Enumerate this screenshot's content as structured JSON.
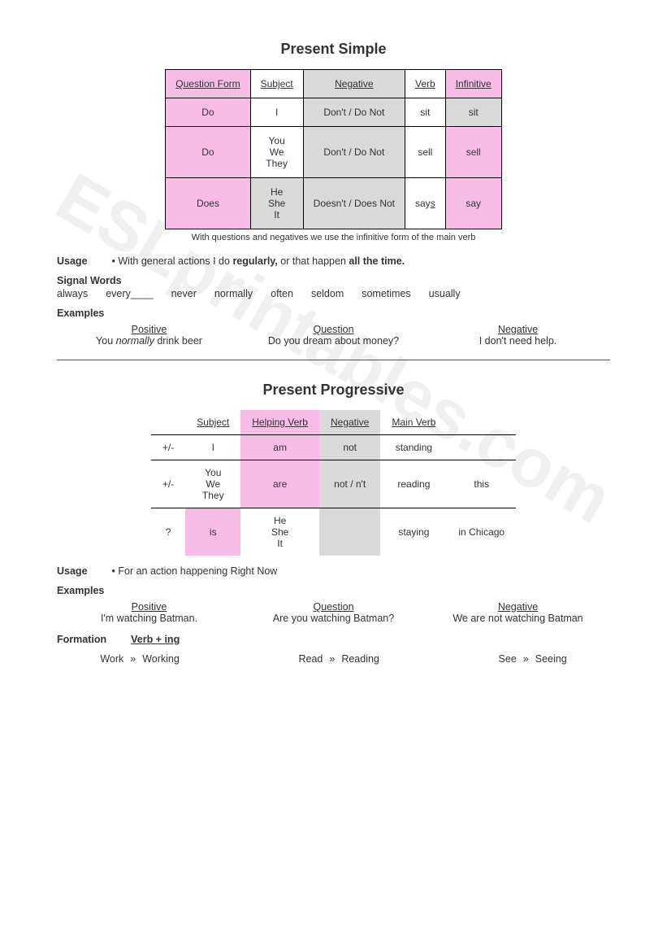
{
  "watermark": "ESLprintables.com",
  "simple": {
    "title": "Present Simple",
    "headers": [
      "Question Form",
      "Subject",
      "Negative",
      "Verb",
      "Infinitive"
    ],
    "rows": [
      {
        "q": "Do",
        "subj": [
          "I"
        ],
        "neg": "Don't / Do Not",
        "verb": "sit",
        "inf": "sit"
      },
      {
        "q": "Do",
        "subj": [
          "You",
          "We",
          "They"
        ],
        "neg": "Don't / Do Not",
        "verb": "sell",
        "inf": "sell"
      },
      {
        "q": "Does",
        "subj": [
          "He",
          "She",
          "It"
        ],
        "neg": "Doesn't / Does Not",
        "verb": "say",
        "verb_display_prefix": "say",
        "verb_display_suffix": "s",
        "inf": "say"
      }
    ],
    "note": "With questions and negatives we use the infinitive form of the main verb",
    "usage_label": "Usage",
    "usage_bullet": "• With general actions I do ",
    "usage_bold1": "regularly,",
    "usage_mid": " or that happen ",
    "usage_bold2": "all the time.",
    "signal_label": "Signal Words",
    "signal_words": [
      "always",
      "every____",
      "never",
      "normally",
      "often",
      "seldom",
      "sometimes",
      "usually"
    ],
    "examples_label": "Examples",
    "examples": {
      "positive_hdr": "Positive",
      "positive_pre": "You ",
      "positive_italic": "normally",
      "positive_post": " drink beer",
      "question_hdr": "Question",
      "question": "Do you dream about money?",
      "negative_hdr": "Negative",
      "negative": "I don't need help."
    }
  },
  "progressive": {
    "title": "Present Progressive",
    "headers": [
      "",
      "Subject",
      "Helping Verb",
      "Negative",
      "Main Verb",
      ""
    ],
    "rows": [
      {
        "mark": "+/-",
        "c1": "I",
        "c2": "am",
        "c3": "not",
        "c4": "standing",
        "c5": ""
      },
      {
        "mark": "+/-",
        "c1_multi": [
          "You",
          "We",
          "They"
        ],
        "c2": "are",
        "c3": "not / n't",
        "c4": "reading",
        "c5": "this"
      },
      {
        "mark": "?",
        "c1": "is",
        "c2_multi": [
          "He",
          "She",
          "It"
        ],
        "c3": "",
        "c4": "staying",
        "c5": "in Chicago"
      }
    ],
    "usage_label": "Usage",
    "usage_text": "• For an action happening Right Now",
    "examples_label": "Examples",
    "examples": {
      "positive_hdr": "Positive",
      "positive": "I'm watching Batman.",
      "question_hdr": "Question",
      "question": "Are you watching Batman?",
      "negative_hdr": "Negative",
      "negative": "We are not watching Batman"
    },
    "formation_label": "Formation",
    "formation_rule": "Verb + ing",
    "formation_examples": [
      {
        "base": "Work",
        "ing": "Working"
      },
      {
        "base": "Read",
        "ing": "Reading"
      },
      {
        "base": "See",
        "ing": "Seeing"
      }
    ],
    "arrow": "»"
  },
  "colors": {
    "pink": "#f7bde6",
    "gray": "#d9d9d9"
  }
}
